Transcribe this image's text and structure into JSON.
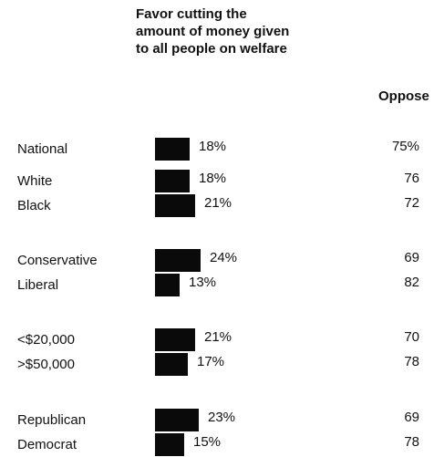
{
  "chart_data": {
    "type": "bar",
    "orientation": "horizontal",
    "title": [
      "Favor cutting the",
      "amount of money given",
      "to all people on welfare"
    ],
    "column_header": "Oppose",
    "categories": [
      "National",
      "White",
      "Black",
      "Conservative",
      "Liberal",
      "<$20,000",
      ">$50,000",
      "Republican",
      "Democrat"
    ],
    "values": [
      18,
      18,
      21,
      24,
      13,
      21,
      17,
      23,
      15
    ],
    "value_labels": [
      "18%",
      "18%",
      "21%",
      "24%",
      "13%",
      "21%",
      "17%",
      "23%",
      "15%"
    ],
    "oppose_values": [
      75,
      76,
      72,
      69,
      82,
      70,
      78,
      69,
      78
    ],
    "oppose_labels": [
      "75%",
      "76",
      "72",
      "69",
      "82",
      "70",
      "78",
      "69",
      "78"
    ],
    "bar_color": "#0a0a0a",
    "grid": false
  }
}
